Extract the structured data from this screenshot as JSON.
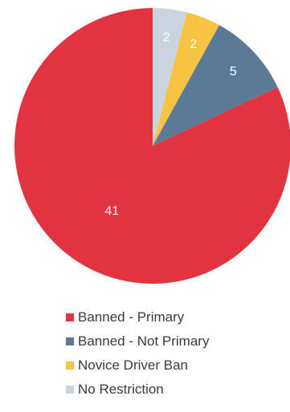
{
  "chart_data": {
    "type": "pie",
    "title": "",
    "start": "top",
    "direction": "counterclockwise",
    "slices": [
      {
        "label": "Banned - Primary",
        "value": 41,
        "color": "#e23340"
      },
      {
        "label": "Banned - Not Primary",
        "value": 5,
        "color": "#5a7a96"
      },
      {
        "label": "Novice Driver Ban",
        "value": 2,
        "color": "#f6c343"
      },
      {
        "label": "No Restriction",
        "value": 2,
        "color": "#c9d4df"
      }
    ],
    "data_labels": [
      "41",
      "5",
      "2",
      "2"
    ],
    "legend_position": "bottom"
  }
}
